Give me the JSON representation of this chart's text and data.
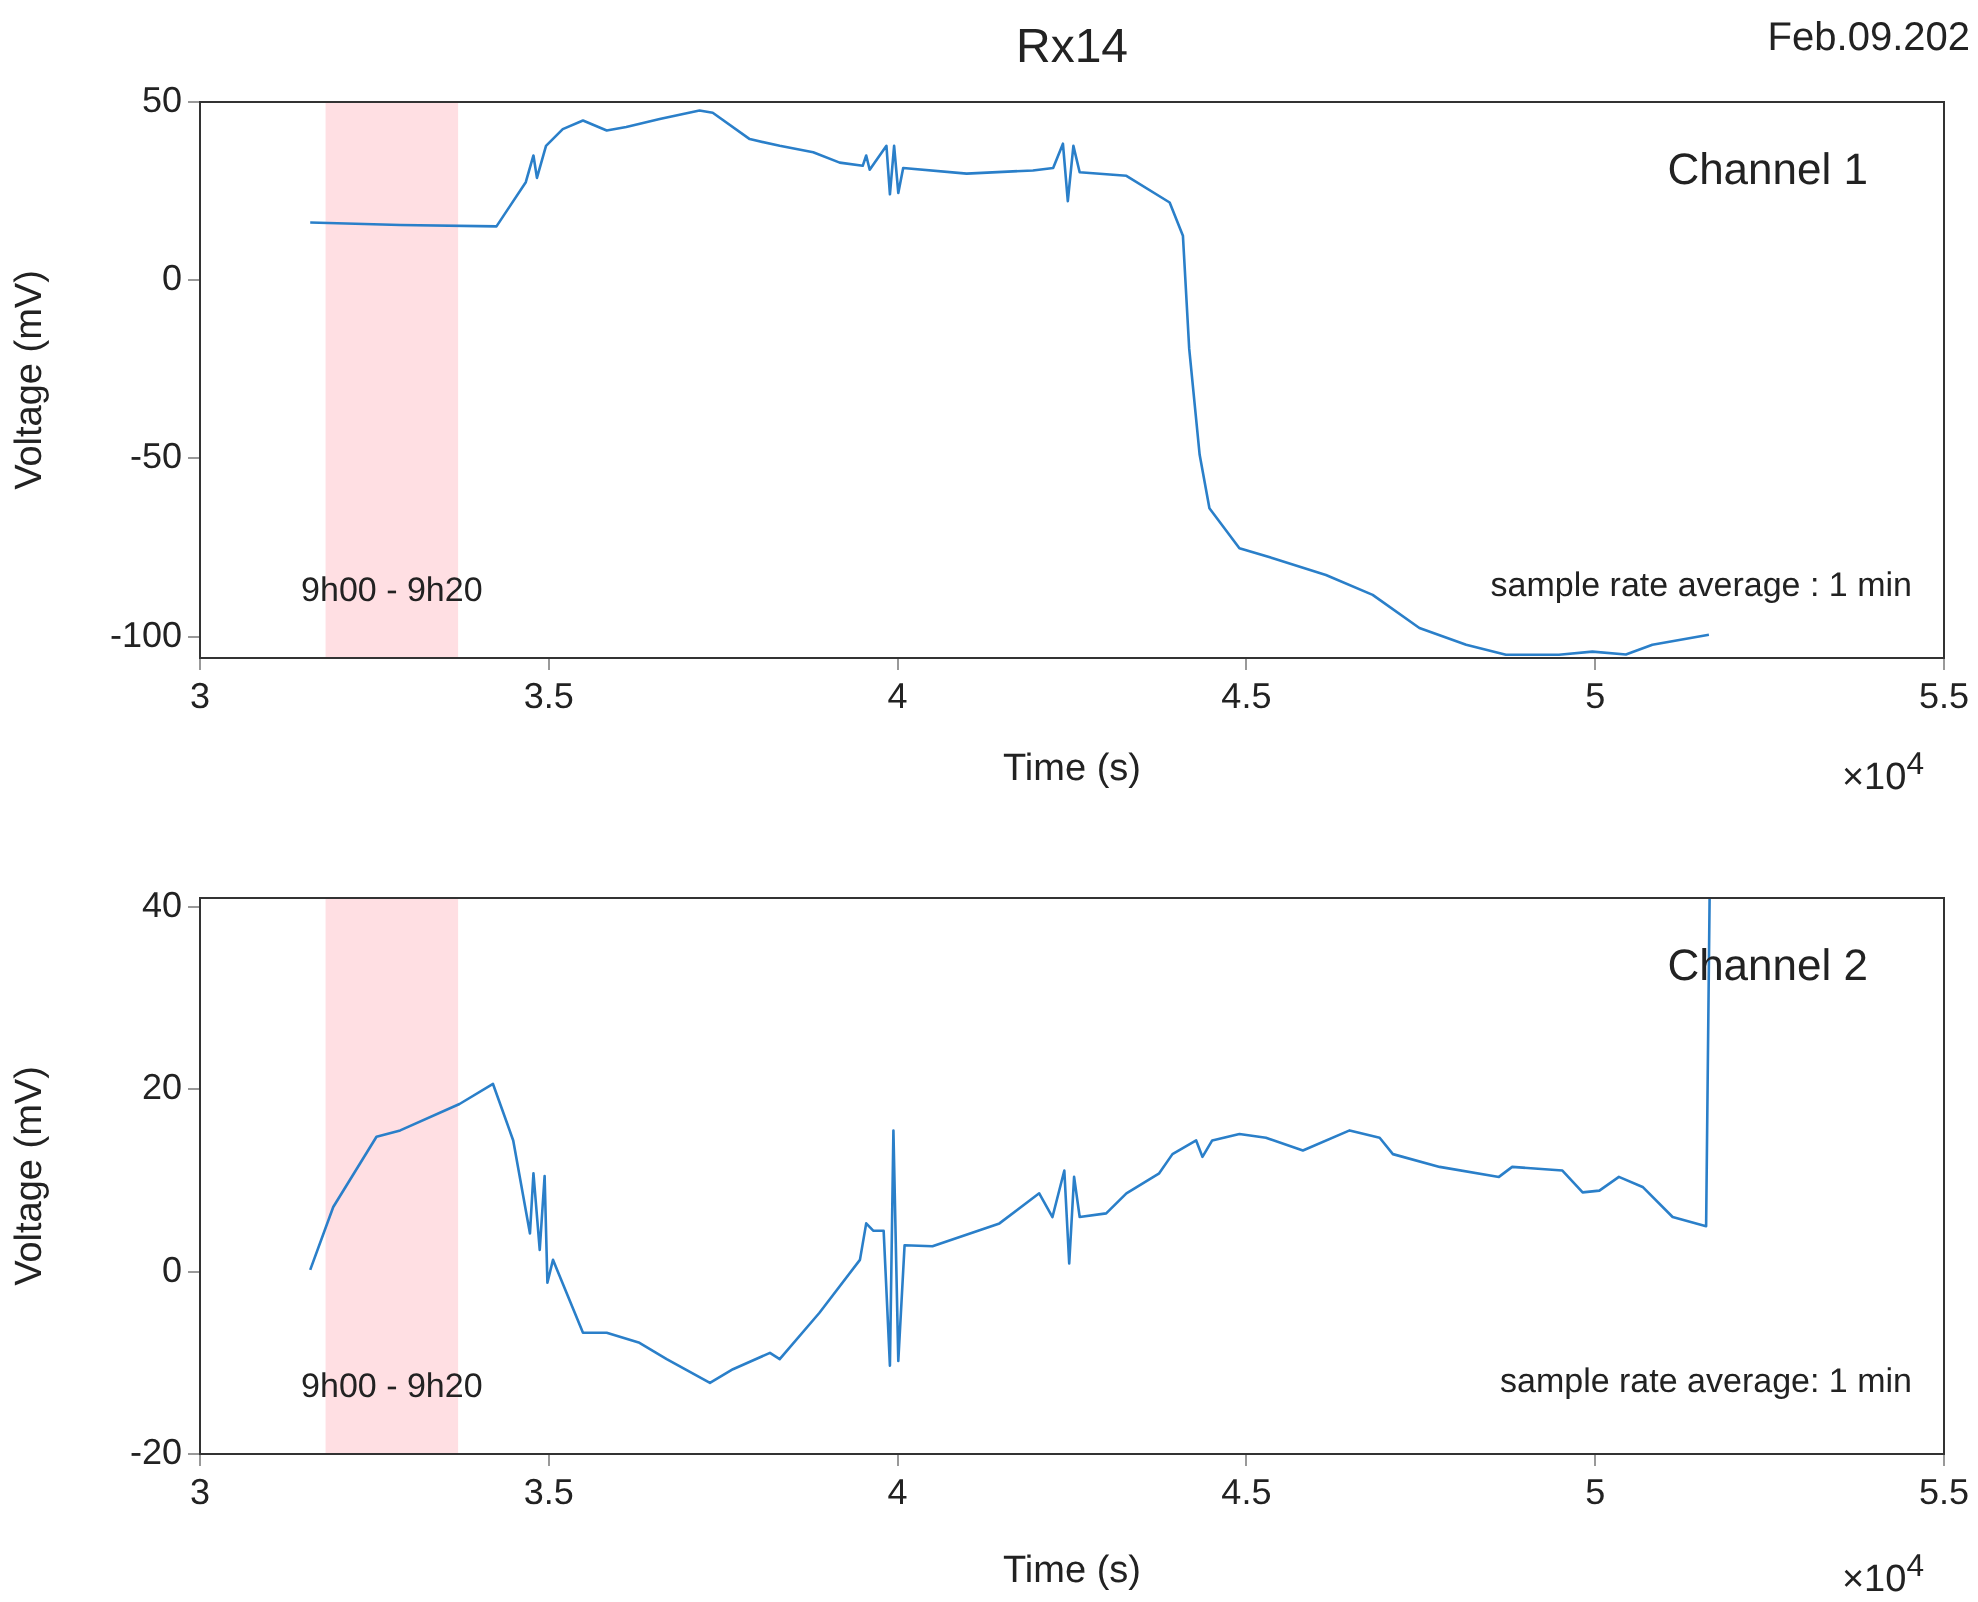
{
  "chart_data": [
    {
      "type": "line",
      "title": "Rx14",
      "subtitle": "Feb.09.202",
      "xlabel": "Time (s)",
      "ylabel": "Voltage (mV)",
      "annotations": [
        "Channel 1",
        "sample rate average : 1 min",
        "×10$^{4}$"
      ],
      "x": [
        3.158,
        3.287,
        3.425,
        3.467,
        3.478,
        3.483,
        3.496,
        3.52,
        3.549,
        3.583,
        3.611,
        3.659,
        3.716,
        3.735,
        3.788,
        3.831,
        3.879,
        3.917,
        3.95,
        3.955,
        3.96,
        3.984,
        3.989,
        3.995,
        4.001,
        4.008,
        4.099,
        4.194,
        4.223,
        4.237,
        4.244,
        4.252,
        4.261,
        4.328,
        4.39,
        4.409,
        4.418,
        4.433,
        4.447,
        4.49,
        4.538,
        4.614,
        4.681,
        4.748,
        4.815,
        4.872,
        4.948,
        4.996,
        5.044,
        5.082,
        5.163
      ],
      "series": [
        {
          "color": "#2a7fc9",
          "values": [
            16.2,
            15.5,
            15.1,
            27.5,
            35,
            28.7,
            37.7,
            42.4,
            44.8,
            42,
            43,
            45.2,
            47.6,
            47,
            39.6,
            37.7,
            35.9,
            33,
            32.1,
            35,
            31,
            37.7,
            24.1,
            37.7,
            24.5,
            31.5,
            29.9,
            30.8,
            31.5,
            38.3,
            22.2,
            37.7,
            30.3,
            29.3,
            21.8,
            12.5,
            -19.2,
            -49,
            -64,
            -75.2,
            -78,
            -82.7,
            -88.3,
            -97.6,
            -102.3,
            -105.1,
            -105.1,
            -104.2,
            -105,
            -102.3,
            -99.5
          ]
        }
      ],
      "bands": [
        {
          "axis": "x",
          "from": 3.18,
          "to": 3.37,
          "label": "9h00 - 9h20",
          "color": "#ffdfe3"
        }
      ],
      "xlim": [
        3,
        5.5
      ],
      "xticks": [
        3,
        3.5,
        4,
        4.5,
        5,
        5.5
      ],
      "ylim": [
        -106,
        50
      ],
      "yticks": [
        -100,
        -50,
        0,
        50
      ],
      "grid": false,
      "legend": false,
      "marker": "none",
      "line_style": "solid"
    },
    {
      "type": "line",
      "xlabel": "Time (s)",
      "ylabel": "Voltage (mV)",
      "annotations": [
        "Channel 2",
        "sample rate average: 1 min",
        "×10$^{4}$"
      ],
      "x": [
        3.158,
        3.191,
        3.253,
        3.287,
        3.372,
        3.42,
        3.449,
        3.473,
        3.478,
        3.487,
        3.494,
        3.498,
        3.506,
        3.549,
        3.583,
        3.63,
        3.669,
        3.731,
        3.764,
        3.817,
        3.831,
        3.888,
        3.946,
        3.955,
        3.965,
        3.98,
        3.989,
        3.994,
        4.001,
        4.01,
        4.05,
        4.146,
        4.203,
        4.222,
        4.239,
        4.246,
        4.253,
        4.261,
        4.299,
        4.328,
        4.375,
        4.394,
        4.428,
        4.437,
        4.451,
        4.49,
        4.528,
        4.581,
        4.648,
        4.691,
        4.71,
        4.777,
        4.862,
        4.881,
        4.953,
        4.982,
        5.006,
        5.034,
        5.068,
        5.111,
        5.159,
        5.164
      ],
      "series": [
        {
          "color": "#2a7fc9",
          "values": [
            0.2,
            7.1,
            14.8,
            15.5,
            18.4,
            20.6,
            14.4,
            4.2,
            10.8,
            2.4,
            10.5,
            -1.2,
            1.3,
            -6.7,
            -6.7,
            -7.8,
            -9.6,
            -12.2,
            -10.7,
            -8.9,
            -9.6,
            -4.5,
            1.3,
            5.3,
            4.5,
            4.5,
            -10.3,
            15.5,
            -9.8,
            2.9,
            2.8,
            5.3,
            8.6,
            6,
            11.1,
            0.9,
            10.4,
            6,
            6.4,
            8.6,
            10.8,
            12.9,
            14.4,
            12.6,
            14.4,
            15.1,
            14.7,
            13.3,
            15.5,
            14.7,
            12.9,
            11.5,
            10.4,
            11.5,
            11.1,
            8.7,
            8.9,
            10.4,
            9.3,
            6,
            5,
            41
          ]
        }
      ],
      "bands": [
        {
          "axis": "x",
          "from": 3.18,
          "to": 3.37,
          "label": "9h00 - 9h20",
          "color": "#ffdfe3"
        }
      ],
      "xlim": [
        3,
        5.5
      ],
      "xticks": [
        3,
        3.5,
        4,
        4.5,
        5,
        5.5
      ],
      "ylim": [
        -20,
        41
      ],
      "yticks": [
        -20,
        0,
        20,
        40
      ],
      "grid": false,
      "legend": false,
      "marker": "none",
      "line_style": "solid"
    }
  ]
}
